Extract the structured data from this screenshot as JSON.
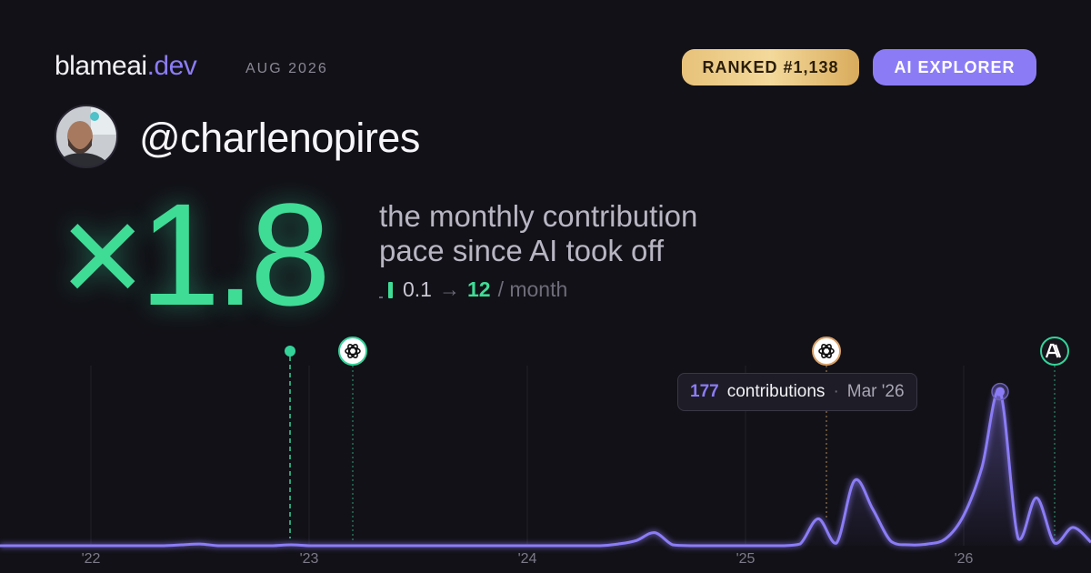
{
  "header": {
    "brand": "blameai",
    "brand_suffix": ".dev",
    "period": "AUG 2026",
    "badges": [
      "RANKED #1,138",
      "AI EXPLORER"
    ]
  },
  "profile": {
    "username": "@charlenopires"
  },
  "headline": {
    "multiplier": "×1.8",
    "description_lines": [
      "the monthly contribution",
      "pace since AI took off"
    ],
    "pace": {
      "before": "0.1",
      "arrow": "→",
      "after": "12",
      "unit": "/ month"
    }
  },
  "chart_data": {
    "type": "area",
    "categories": [
      null,
      null,
      null,
      null,
      null,
      "'22",
      null,
      null,
      null,
      null,
      null,
      null,
      null,
      null,
      null,
      null,
      null,
      "'23",
      null,
      null,
      null,
      null,
      null,
      null,
      null,
      null,
      null,
      null,
      null,
      "'24",
      null,
      null,
      null,
      null,
      null,
      null,
      null,
      null,
      null,
      null,
      null,
      "'25",
      null,
      null,
      null,
      null,
      null,
      null,
      null,
      null,
      null,
      null,
      null,
      "'26",
      null,
      null,
      null,
      null,
      null,
      null,
      null
    ],
    "values": [
      0,
      0,
      0,
      0,
      0,
      0,
      0,
      0,
      0,
      0,
      1,
      2,
      0,
      0,
      0,
      0,
      1,
      0,
      0,
      0,
      0,
      0,
      0,
      0,
      0,
      0,
      0,
      0,
      0,
      0,
      0,
      0,
      0,
      0,
      2,
      6,
      15,
      1,
      0,
      0,
      0,
      0,
      0,
      0,
      2,
      31,
      3,
      75,
      42,
      5,
      1,
      2,
      8,
      35,
      90,
      177,
      8,
      55,
      3,
      21,
      4
    ],
    "color": "#8b7cf6",
    "ylim": [
      0,
      185
    ],
    "tooltip": {
      "label": "contributions",
      "separator": "·",
      "date": "Mar '26"
    }
  }
}
